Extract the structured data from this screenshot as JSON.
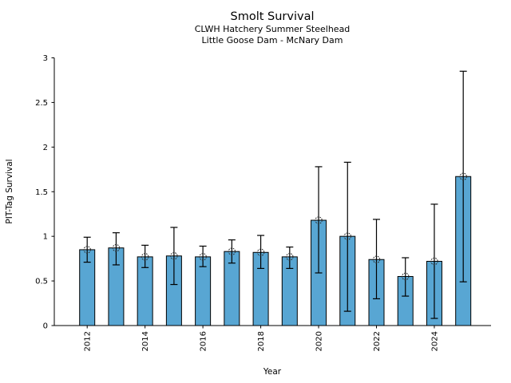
{
  "chart_data": {
    "type": "bar",
    "title": "Smolt Survival",
    "subtitle": [
      "CLWH Hatchery Summer Steelhead",
      "Little Goose Dam - McNary Dam"
    ],
    "xlabel": "Year",
    "ylabel": "PIT-Tag Survival",
    "ylim": [
      0,
      3
    ],
    "yticks": [
      0,
      0.5,
      1,
      1.5,
      2,
      2.5,
      3
    ],
    "ytick_labels": [
      "0",
      "0.5",
      "1",
      "1.5",
      "2",
      "2.5",
      "3"
    ],
    "xtick_labels": [
      "2012",
      "2014",
      "2016",
      "2018",
      "2020",
      "2022",
      "2024"
    ],
    "categories": [
      2012,
      2013,
      2014,
      2015,
      2016,
      2017,
      2018,
      2019,
      2020,
      2021,
      2022,
      2023,
      2024,
      2025
    ],
    "values": [
      0.85,
      0.87,
      0.77,
      0.78,
      0.77,
      0.83,
      0.82,
      0.77,
      1.18,
      1.0,
      0.74,
      0.55,
      0.72,
      1.67
    ],
    "error_low": [
      0.71,
      0.68,
      0.65,
      0.46,
      0.66,
      0.7,
      0.64,
      0.64,
      0.59,
      0.16,
      0.3,
      0.33,
      0.08,
      0.49
    ],
    "error_high": [
      0.99,
      1.04,
      0.9,
      1.1,
      0.89,
      0.96,
      1.01,
      0.88,
      1.78,
      1.83,
      1.19,
      0.76,
      1.36,
      2.85
    ],
    "grid": false,
    "legend": null,
    "marker": "open-circle",
    "bar_color": "#58a6d3",
    "bar_edge_color": "#000000",
    "error_color": "#000000",
    "text_color": "#000000"
  }
}
